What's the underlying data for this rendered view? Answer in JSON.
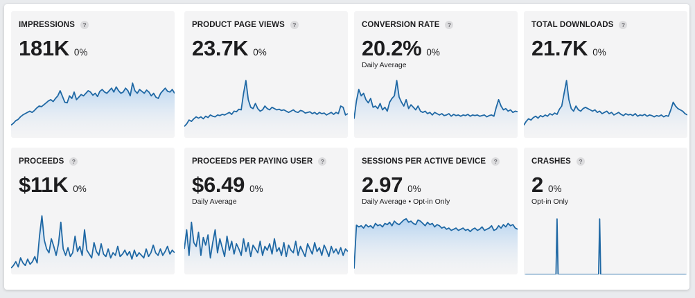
{
  "colors": {
    "line": "#1f68a4",
    "fill_top": "#a9cdf0",
    "fill_bottom": "#f4f4f5",
    "card_bg": "#f4f4f5"
  },
  "cards": [
    {
      "title": "IMPRESSIONS",
      "help": "?",
      "value": "181K",
      "change": "0%",
      "subtitle": "",
      "series": [
        20,
        23,
        27,
        29,
        33,
        36,
        38,
        40,
        42,
        40,
        43,
        47,
        50,
        49,
        52,
        55,
        58,
        60,
        57,
        62,
        66,
        74,
        65,
        56,
        55,
        66,
        62,
        72,
        60,
        64,
        68,
        66,
        70,
        74,
        72,
        67,
        70,
        65,
        73,
        76,
        72,
        70,
        74,
        78,
        72,
        80,
        74,
        70,
        72,
        78,
        74,
        66,
        86,
        74,
        70,
        76,
        73,
        70,
        75,
        72,
        66,
        70,
        64,
        62,
        70,
        74,
        78,
        73,
        72,
        76,
        70
      ],
      "ylim": [
        0,
        100
      ]
    },
    {
      "title": "PRODUCT PAGE VIEWS",
      "help": "?",
      "value": "23.7K",
      "change": "0%",
      "subtitle": "",
      "series": [
        18,
        22,
        28,
        26,
        30,
        33,
        31,
        33,
        30,
        34,
        32,
        36,
        34,
        33,
        36,
        35,
        37,
        36,
        38,
        40,
        37,
        42,
        41,
        45,
        44,
        70,
        90,
        60,
        48,
        46,
        54,
        46,
        42,
        44,
        50,
        46,
        44,
        48,
        46,
        44,
        45,
        43,
        44,
        42,
        40,
        42,
        44,
        41,
        40,
        43,
        42,
        39,
        40,
        41,
        38,
        40,
        37,
        40,
        38,
        39,
        36,
        38,
        40,
        37,
        40,
        38,
        50,
        48,
        36,
        38
      ],
      "ylim": [
        0,
        100
      ]
    },
    {
      "title": "CONVERSION RATE",
      "help": "?",
      "value": "20.2%",
      "change": "0%",
      "subtitle": "Daily Average",
      "series": [
        30,
        58,
        76,
        66,
        70,
        60,
        55,
        62,
        48,
        50,
        46,
        54,
        44,
        48,
        42,
        56,
        62,
        66,
        90,
        64,
        56,
        50,
        60,
        46,
        52,
        48,
        44,
        50,
        42,
        40,
        42,
        38,
        40,
        36,
        40,
        38,
        36,
        38,
        35,
        36,
        38,
        34,
        37,
        35,
        36,
        34,
        36,
        35,
        37,
        34,
        36,
        35,
        36,
        34,
        35,
        36,
        33,
        35,
        36,
        34,
        48,
        60,
        50,
        44,
        46,
        42,
        44,
        40,
        42,
        41
      ],
      "ylim": [
        0,
        100
      ]
    },
    {
      "title": "TOTAL DOWNLOADS",
      "help": "?",
      "value": "21.7K",
      "change": "0%",
      "subtitle": "",
      "series": [
        20,
        26,
        30,
        28,
        32,
        34,
        31,
        35,
        33,
        36,
        34,
        38,
        36,
        39,
        37,
        45,
        50,
        70,
        90,
        60,
        46,
        42,
        50,
        44,
        42,
        46,
        48,
        46,
        44,
        42,
        44,
        40,
        42,
        38,
        40,
        42,
        38,
        40,
        36,
        38,
        40,
        37,
        35,
        38,
        36,
        37,
        35,
        38,
        34,
        36,
        35,
        37,
        34,
        36,
        35,
        33,
        35,
        34,
        36,
        33,
        35,
        34,
        44,
        56,
        50,
        46,
        44,
        42,
        38,
        36
      ],
      "ylim": [
        0,
        100
      ]
    },
    {
      "title": "PROCEEDS",
      "help": "?",
      "value": "$11K",
      "change": "0%",
      "subtitle": "",
      "series": [
        10,
        14,
        20,
        12,
        26,
        18,
        14,
        24,
        16,
        20,
        28,
        18,
        60,
        92,
        54,
        40,
        34,
        56,
        44,
        30,
        48,
        82,
        40,
        30,
        42,
        28,
        34,
        60,
        36,
        44,
        30,
        70,
        38,
        32,
        26,
        50,
        36,
        30,
        48,
        32,
        28,
        40,
        26,
        34,
        30,
        44,
        28,
        32,
        38,
        30,
        36,
        24,
        38,
        28,
        34,
        30,
        26,
        40,
        28,
        34,
        46,
        34,
        30,
        40,
        30,
        36,
        44,
        32,
        38,
        34
      ],
      "ylim": [
        0,
        100
      ]
    },
    {
      "title": "PROCEEDS PER PAYING USER",
      "help": "?",
      "value": "$6.49",
      "change": "0%",
      "subtitle": "Daily Average",
      "series": [
        40,
        70,
        30,
        82,
        50,
        44,
        66,
        30,
        58,
        46,
        62,
        26,
        50,
        70,
        34,
        56,
        42,
        28,
        60,
        38,
        52,
        32,
        48,
        40,
        30,
        56,
        36,
        50,
        28,
        46,
        40,
        34,
        52,
        30,
        44,
        38,
        48,
        32,
        56,
        36,
        42,
        30,
        50,
        28,
        46,
        38,
        34,
        52,
        30,
        44,
        36,
        28,
        48,
        40,
        32,
        50,
        36,
        42,
        30,
        46,
        38,
        28,
        44,
        34,
        40,
        32,
        42,
        30,
        40,
        36
      ],
      "ylim": [
        0,
        100
      ]
    },
    {
      "title": "SESSIONS PER ACTIVE DEVICE",
      "help": "?",
      "value": "2.97",
      "change": "0%",
      "subtitle": "Daily Average • Opt-in Only",
      "series": [
        10,
        85,
        82,
        84,
        80,
        86,
        82,
        84,
        80,
        88,
        84,
        86,
        82,
        88,
        86,
        90,
        84,
        92,
        88,
        86,
        90,
        94,
        96,
        90,
        92,
        88,
        86,
        94,
        92,
        88,
        84,
        90,
        86,
        88,
        82,
        86,
        84,
        80,
        82,
        78,
        80,
        76,
        78,
        80,
        76,
        78,
        80,
        76,
        78,
        74,
        78,
        80,
        76,
        78,
        82,
        76,
        78,
        80,
        84,
        76,
        78,
        84,
        80,
        86,
        82,
        88,
        84,
        86,
        80,
        78
      ],
      "ylim": [
        0,
        110
      ]
    },
    {
      "title": "CRASHES",
      "help": "?",
      "value": "2",
      "change": "0%",
      "subtitle": "Opt-in Only",
      "series": [
        0,
        0,
        0,
        0,
        0,
        0,
        0,
        0,
        0,
        0,
        0,
        0,
        0,
        0,
        0,
        0,
        0,
        0,
        0,
        0,
        0,
        0,
        0,
        0,
        0,
        0,
        0,
        0,
        0,
        0,
        0,
        0,
        0,
        0,
        0,
        0,
        0,
        0,
        0,
        0,
        0,
        0,
        0,
        0,
        0,
        0,
        0,
        0,
        0,
        0,
        0,
        0,
        0,
        0,
        0,
        0,
        0,
        0,
        0,
        0,
        0,
        0,
        0,
        0,
        0,
        0,
        0,
        0,
        0,
        0
      ],
      "spikes": [
        {
          "index": 14,
          "value": 1
        },
        {
          "index": 32,
          "value": 1
        }
      ],
      "ylim": [
        0,
        1.15
      ],
      "no_fill": true
    }
  ]
}
